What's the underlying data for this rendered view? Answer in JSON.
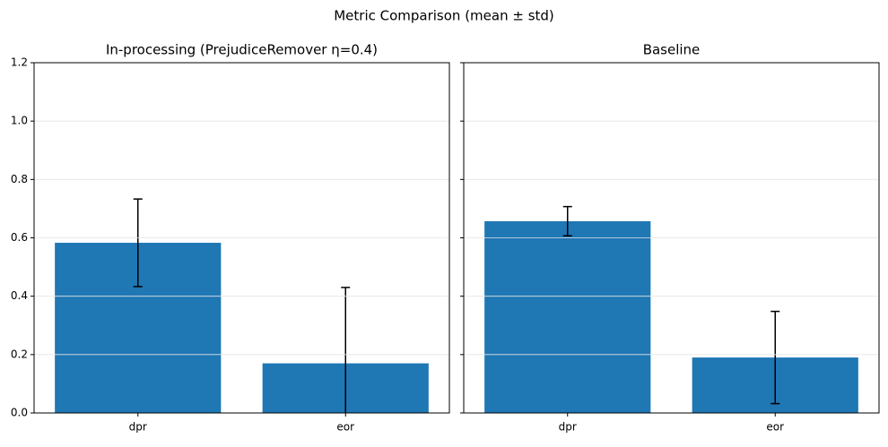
{
  "title": "Metric Comparison (mean ± std)",
  "chart_data": [
    {
      "type": "bar",
      "title": "In-processing (PrejudiceRemover η=0.4)",
      "categories": [
        "dpr",
        "eor"
      ],
      "values": [
        0.583,
        0.17
      ],
      "errors": [
        0.15,
        0.26
      ],
      "color": "#1f77b4",
      "ylim": [
        0,
        1.2
      ],
      "yticks": [
        {
          "value": 0,
          "label": "0.0"
        },
        0.2,
        0.4,
        0.6,
        0.8,
        {
          "value": 1,
          "label": "1.0"
        },
        1.2
      ],
      "ytick_labels": true,
      "grid": true
    },
    {
      "type": "bar",
      "title": "Baseline",
      "categories": [
        "dpr",
        "eor"
      ],
      "values": [
        0.657,
        0.19
      ],
      "errors": [
        0.05,
        0.158
      ],
      "color": "#1f77b4",
      "ylim": [
        0,
        1.2
      ],
      "yticks": [
        {
          "value": 0,
          "label": "0.0"
        },
        0.2,
        0.4,
        0.6,
        0.8,
        {
          "value": 1,
          "label": "1.0"
        },
        1.2
      ],
      "ytick_labels": false,
      "grid": true
    }
  ]
}
